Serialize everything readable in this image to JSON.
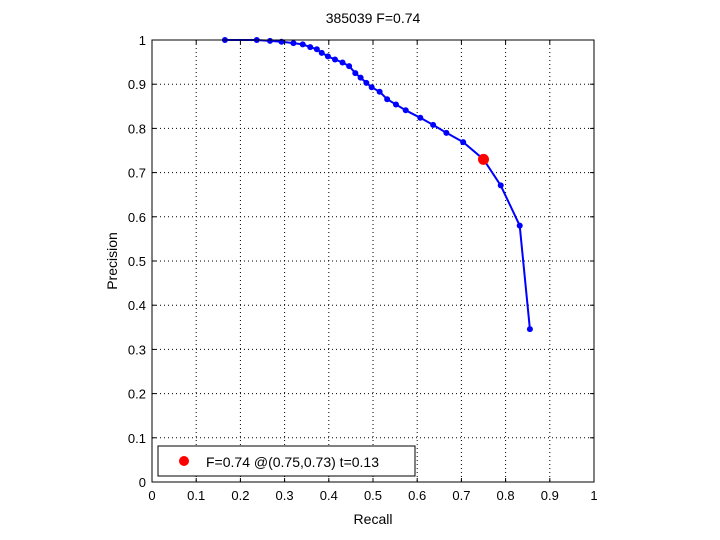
{
  "chart_data": {
    "type": "line",
    "title": "385039 F=0.74",
    "xlabel": "Recall",
    "ylabel": "Precision",
    "xlim": [
      0,
      1
    ],
    "ylim": [
      0,
      1
    ],
    "xticks": [
      "0",
      "0.1",
      "0.2",
      "0.3",
      "0.4",
      "0.5",
      "0.6",
      "0.7",
      "0.8",
      "0.9",
      "1"
    ],
    "yticks": [
      "0",
      "0.1",
      "0.2",
      "0.3",
      "0.4",
      "0.5",
      "0.6",
      "0.7",
      "0.8",
      "0.9",
      "1"
    ],
    "grid": true,
    "legend_position": "bottom-left",
    "series": [
      {
        "color": "#0000ff",
        "marker": "dot",
        "points": [
          [
            0.165,
            1.0
          ],
          [
            0.237,
            1.0
          ],
          [
            0.267,
            0.998
          ],
          [
            0.293,
            0.996
          ],
          [
            0.32,
            0.993
          ],
          [
            0.341,
            0.99
          ],
          [
            0.358,
            0.984
          ],
          [
            0.373,
            0.979
          ],
          [
            0.384,
            0.971
          ],
          [
            0.398,
            0.963
          ],
          [
            0.414,
            0.956
          ],
          [
            0.431,
            0.949
          ],
          [
            0.446,
            0.941
          ],
          [
            0.46,
            0.925
          ],
          [
            0.472,
            0.915
          ],
          [
            0.485,
            0.903
          ],
          [
            0.497,
            0.893
          ],
          [
            0.515,
            0.883
          ],
          [
            0.532,
            0.866
          ],
          [
            0.552,
            0.854
          ],
          [
            0.574,
            0.841
          ],
          [
            0.607,
            0.824
          ],
          [
            0.636,
            0.808
          ],
          [
            0.666,
            0.79
          ],
          [
            0.704,
            0.769
          ],
          [
            0.75,
            0.73
          ],
          [
            0.789,
            0.671
          ],
          [
            0.832,
            0.58
          ],
          [
            0.855,
            0.346
          ]
        ]
      }
    ],
    "highlight": {
      "x": 0.75,
      "y": 0.73,
      "color": "#ff0000"
    },
    "legend_label": "F=0.74 @(0.75,0.73) t=0.13"
  }
}
